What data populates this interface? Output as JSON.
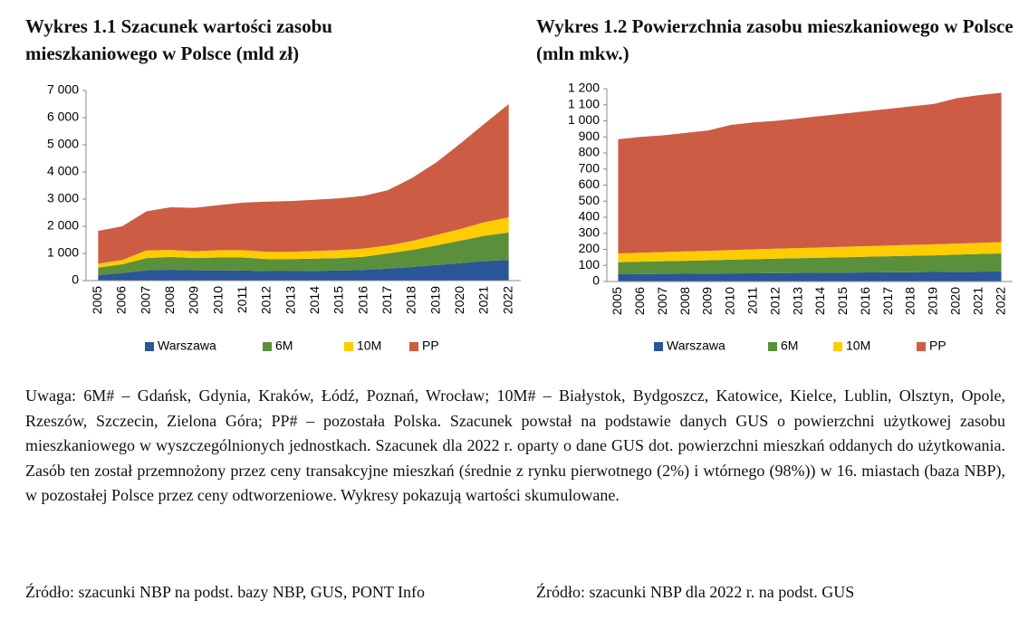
{
  "chart_data": [
    {
      "type": "stacked_area",
      "title": "Wykres 1.1 Szacunek wartości zasobu mieszkaniowego w Polsce (mld zł)",
      "categories": [
        "2005",
        "2006",
        "2007",
        "2008",
        "2009",
        "2010",
        "2011",
        "2012",
        "2013",
        "2014",
        "2015",
        "2016",
        "2017",
        "2018",
        "2019",
        "2020",
        "2021",
        "2022"
      ],
      "series": [
        {
          "name": "Warszawa",
          "color": "#2a5597",
          "values": [
            200,
            280,
            380,
            400,
            380,
            380,
            370,
            350,
            350,
            360,
            370,
            390,
            440,
            500,
            570,
            640,
            720,
            760
          ]
        },
        {
          "name": "6M",
          "color": "#5a8f3c",
          "values": [
            280,
            320,
            450,
            470,
            450,
            470,
            480,
            440,
            440,
            450,
            460,
            490,
            560,
            630,
            720,
            830,
            930,
            1010
          ]
        },
        {
          "name": "10M",
          "color": "#ffcc00",
          "values": [
            140,
            160,
            280,
            260,
            250,
            270,
            270,
            270,
            270,
            280,
            290,
            300,
            290,
            330,
            390,
            430,
            500,
            560
          ]
        },
        {
          "name": "PP",
          "color": "#cd5c45",
          "values": [
            1210,
            1240,
            1440,
            1570,
            1600,
            1660,
            1750,
            1850,
            1870,
            1890,
            1910,
            1940,
            2040,
            2320,
            2670,
            3150,
            3630,
            4170
          ]
        }
      ],
      "ylim": [
        0,
        7000
      ],
      "yticks": [
        0,
        {
          "value": 1000,
          "label": "1 000"
        },
        {
          "value": 2000,
          "label": "2 000"
        },
        {
          "value": 3000,
          "label": "3 000"
        },
        {
          "value": 4000,
          "label": "4 000"
        },
        {
          "value": 5000,
          "label": "5 000"
        },
        {
          "value": 6000,
          "label": "6 000"
        },
        {
          "value": 7000,
          "label": "7 000"
        }
      ],
      "grid": false,
      "legend": "bottom"
    },
    {
      "type": "stacked_area",
      "title": "Wykres 1.2 Powierzchnia zasobu mieszkaniowego w Polsce (mln mkw.)",
      "categories": [
        "2005",
        "2006",
        "2007",
        "2008",
        "2009",
        "2010",
        "2011",
        "2012",
        "2013",
        "2014",
        "2015",
        "2016",
        "2017",
        "2018",
        "2019",
        "2020",
        "2021",
        "2022"
      ],
      "series": [
        {
          "name": "Warszawa",
          "color": "#2a5597",
          "values": [
            45,
            46,
            47,
            48,
            49,
            50,
            51,
            52,
            53,
            54,
            55,
            56,
            57,
            58,
            59,
            60,
            61,
            62
          ]
        },
        {
          "name": "6M",
          "color": "#5a8f3c",
          "values": [
            75,
            77,
            79,
            81,
            83,
            86,
            88,
            90,
            92,
            94,
            96,
            98,
            100,
            102,
            104,
            107,
            110,
            113
          ]
        },
        {
          "name": "10M",
          "color": "#ffcc00",
          "values": [
            55,
            56,
            57,
            58,
            59,
            60,
            61,
            62,
            63,
            64,
            65,
            66,
            67,
            68,
            69,
            69,
            69,
            71
          ]
        },
        {
          "name": "PP",
          "color": "#cd5c45",
          "values": [
            710,
            721,
            727,
            738,
            749,
            779,
            790,
            796,
            807,
            818,
            829,
            840,
            851,
            862,
            873,
            904,
            920,
            929
          ]
        }
      ],
      "ylim": [
        0,
        1200
      ],
      "yticks": [
        0,
        100,
        200,
        300,
        400,
        500,
        600,
        700,
        800,
        900,
        {
          "value": 1000,
          "label": "1 000"
        },
        {
          "value": 1100,
          "label": "1 100"
        },
        {
          "value": 1200,
          "label": "1 200"
        }
      ],
      "grid": false,
      "legend": "bottom"
    }
  ],
  "note": "Uwaga: 6M# – Gdańsk, Gdynia, Kraków, Łódź, Poznań, Wrocław; 10M# – Białystok, Bydgoszcz, Katowice, Kielce, Lublin, Olsztyn, Opole, Rzeszów, Szczecin, Zielona Góra; PP# – pozostała Polska. Szacunek powstał na podstawie danych GUS o powierzchni użytkowej zasobu mieszkaniowego w wyszczególnionych jednostkach. Szacunek dla 2022 r. oparty o dane GUS dot. powierzchni mieszkań oddanych do użytkowania. Zasób ten został przemnożony przez ceny transakcyjne mieszkań (średnie z rynku pierwotnego (2%) i wtórnego (98%)) w 16. miastach (baza NBP), w pozostałej Polsce przez ceny odtworzeniowe. Wykresy pokazują wartości skumulowane.",
  "sources": [
    "Źródło: szacunki NBP na podst. bazy NBP, GUS, PONT Info",
    "Źródło: szacunki NBP dla 2022 r. na podst. GUS"
  ]
}
